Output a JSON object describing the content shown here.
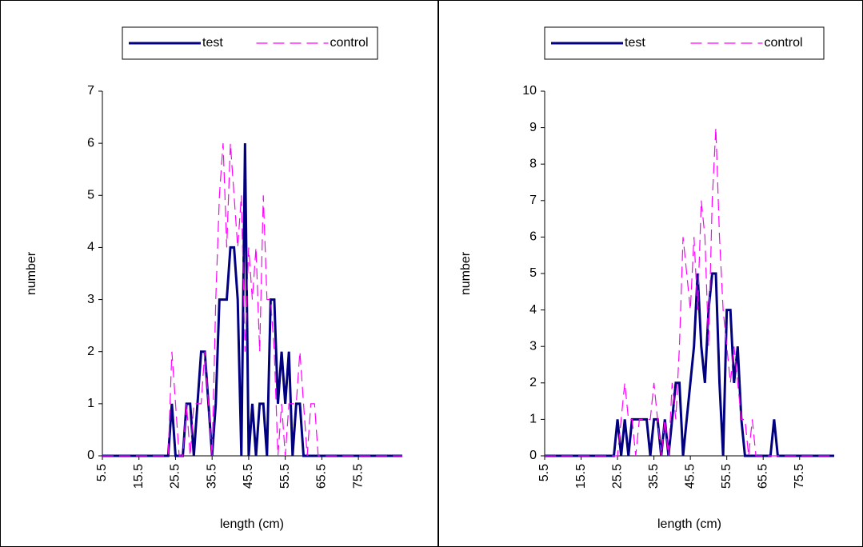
{
  "chart_data": [
    {
      "type": "line",
      "x_label": "length (cm)",
      "y_label": "number",
      "x": [
        5.5,
        22.5,
        23.5,
        24.5,
        25.5,
        26.5,
        27.5,
        28.5,
        29.5,
        30.5,
        31.5,
        32.5,
        33.5,
        34.5,
        35.5,
        36.5,
        37.5,
        38.5,
        39.5,
        40.5,
        41.5,
        42.5,
        43.5,
        44.5,
        45.5,
        46.5,
        47.5,
        48.5,
        49.5,
        50.5,
        51.5,
        52.5,
        53.5,
        54.5,
        55.5,
        56.5,
        57.5,
        58.5,
        59.5,
        60.5,
        61.5,
        62.5,
        63.5,
        64.5,
        65.5,
        66.5,
        87.5
      ],
      "series": [
        {
          "name": "test",
          "color": "#000080",
          "dashed": false,
          "values": [
            0,
            0,
            0,
            1,
            0,
            0,
            0,
            1,
            1,
            0,
            1,
            2,
            2,
            1,
            0,
            1,
            3,
            3,
            3,
            4,
            4,
            3,
            0,
            6,
            0,
            1,
            0,
            1,
            1,
            0,
            3,
            3,
            1,
            2,
            1,
            2,
            0,
            1,
            1,
            0,
            0,
            0,
            0,
            0,
            0,
            0,
            0
          ]
        },
        {
          "name": "control",
          "color": "#ff00ff",
          "dashed": true,
          "values": [
            0,
            0,
            0,
            2,
            1,
            0,
            0,
            1,
            0,
            1,
            1,
            1,
            2,
            1,
            0,
            3,
            5,
            6,
            4,
            6,
            5,
            4,
            5,
            2,
            4,
            3,
            4,
            2,
            5,
            3,
            3,
            2,
            0,
            1,
            0,
            1,
            1,
            1,
            2,
            1,
            0,
            1,
            1,
            0,
            0,
            0,
            0
          ]
        }
      ],
      "xlim": [
        5.5,
        87.5
      ],
      "xticks": [
        5.5,
        15.5,
        25.5,
        35.5,
        45.5,
        55.5,
        65.5,
        75.5
      ],
      "ylim": [
        0,
        7
      ],
      "yticks": [
        0,
        1,
        2,
        3,
        4,
        5,
        6,
        7
      ],
      "legend": "top"
    },
    {
      "type": "line",
      "x_label": "length (cm)",
      "y_label": "number",
      "x": [
        5.5,
        24.5,
        25.5,
        26.5,
        27.5,
        28.5,
        29.5,
        30.5,
        31.5,
        32.5,
        33.5,
        34.5,
        35.5,
        36.5,
        37.5,
        38.5,
        39.5,
        40.5,
        41.5,
        42.5,
        43.5,
        44.5,
        45.5,
        46.5,
        47.5,
        48.5,
        49.5,
        50.5,
        51.5,
        52.5,
        53.5,
        54.5,
        55.5,
        56.5,
        57.5,
        58.5,
        59.5,
        60.5,
        61.5,
        62.5,
        63.5,
        64.5,
        65.5,
        66.5,
        67.5,
        68.5,
        69.5,
        85
      ],
      "series": [
        {
          "name": "test",
          "color": "#000080",
          "dashed": false,
          "values": [
            0,
            0,
            1,
            0,
            1,
            0,
            1,
            1,
            1,
            1,
            1,
            0,
            1,
            1,
            0,
            1,
            0,
            1,
            2,
            2,
            0,
            1,
            2,
            3,
            5,
            3,
            2,
            4,
            5,
            5,
            2,
            0,
            4,
            4,
            2,
            3,
            1,
            0,
            0,
            0,
            0,
            0,
            0,
            0,
            0,
            1,
            0,
            0
          ]
        },
        {
          "name": "control",
          "color": "#ff00ff",
          "dashed": true,
          "values": [
            0,
            0,
            0,
            1,
            2,
            1,
            1,
            0,
            1,
            1,
            1,
            1,
            2,
            1,
            0,
            1,
            0,
            2,
            1,
            3,
            6,
            5,
            4,
            6,
            4,
            7,
            6,
            3,
            7,
            9,
            6,
            4,
            3,
            2,
            3,
            2,
            1,
            1,
            0,
            1,
            0,
            0,
            0,
            0,
            0,
            0,
            0,
            0
          ]
        }
      ],
      "xlim": [
        5.5,
        85
      ],
      "xticks": [
        5.5,
        15.5,
        25.5,
        35.5,
        45.5,
        55.5,
        65.5,
        75.5
      ],
      "ylim": [
        0,
        10
      ],
      "yticks": [
        0,
        1,
        2,
        3,
        4,
        5,
        6,
        7,
        8,
        9,
        10
      ],
      "legend": "top"
    }
  ]
}
